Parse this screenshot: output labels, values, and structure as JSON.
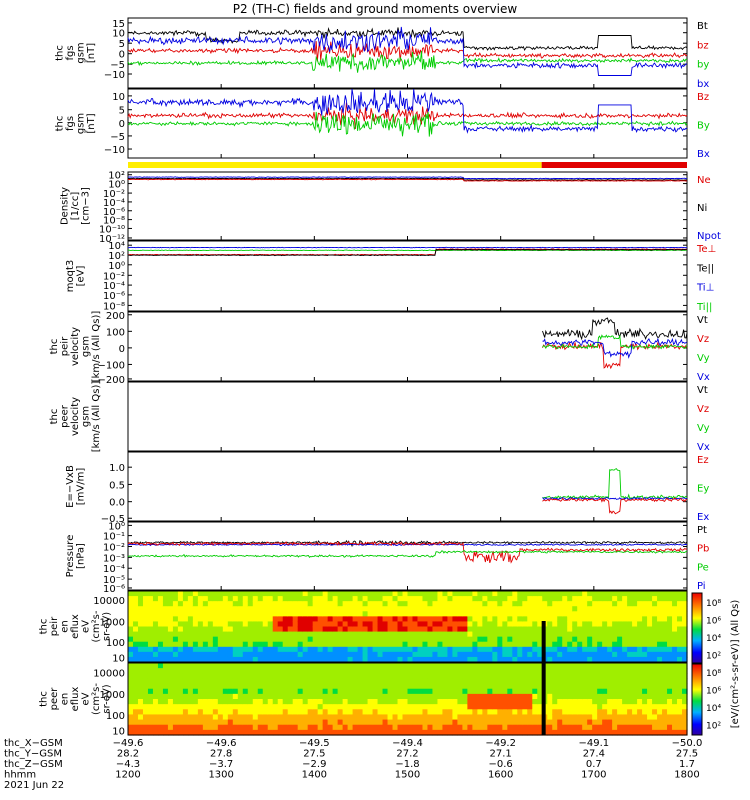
{
  "title": "P2 (TH-C) fields and ground moments overview",
  "colors": {
    "black": "#000000",
    "red": "#e00000",
    "green": "#00cc00",
    "blue": "#0000e0",
    "yellow": "#ffee00",
    "bar_red": "#e00000"
  },
  "panels": [
    {
      "id": "fgs-gsm",
      "ylabel": [
        "thc",
        "fgs",
        "gsm",
        "[nT]"
      ],
      "yticks": [
        "15",
        "10",
        "5",
        "0",
        "−5",
        "−10"
      ],
      "legend": [
        {
          "label": "Bt",
          "color": "#000000"
        },
        {
          "label": "bz",
          "color": "#e00000"
        },
        {
          "label": "by",
          "color": "#00cc00"
        },
        {
          "label": "bx",
          "color": "#0000e0"
        }
      ]
    },
    {
      "id": "fgs-dsl",
      "ylabel": [
        "thc",
        "fgs",
        "gsm",
        "[nT]"
      ],
      "yticks": [
        "10",
        "5",
        "0",
        "−5",
        "−10"
      ],
      "legend": [
        {
          "label": "Bz",
          "color": "#e00000"
        },
        {
          "label": "By",
          "color": "#00cc00"
        },
        {
          "label": "Bx",
          "color": "#0000e0"
        }
      ]
    },
    {
      "id": "density",
      "ylabel": [
        "Density",
        "[1/cc]",
        "[cm−3]"
      ],
      "yticks": [
        "10²",
        "10⁰",
        "10⁻²",
        "10⁻⁴",
        "10⁻⁶",
        "10⁻⁸",
        "10⁻¹⁰",
        "10⁻¹²"
      ],
      "legend": [
        {
          "label": "Ne",
          "color": "#e00000"
        },
        {
          "label": "Ni",
          "color": "#000000"
        },
        {
          "label": "Npot",
          "color": "#0000e0"
        }
      ]
    },
    {
      "id": "temperature",
      "ylabel": [
        "moqt3",
        "[eV]"
      ],
      "yticks": [
        "10⁴",
        "10²",
        "10⁰",
        "10⁻²",
        "10⁻⁴",
        "10⁻⁶",
        "10⁻⁸"
      ],
      "legend": [
        {
          "label": "Te⊥",
          "color": "#e00000"
        },
        {
          "label": "Te||",
          "color": "#000000"
        },
        {
          "label": "Ti⊥",
          "color": "#0000e0"
        },
        {
          "label": "Ti||",
          "color": "#00cc00"
        }
      ]
    },
    {
      "id": "peir-velocity",
      "ylabel": [
        "thc",
        "peir",
        "velocity",
        "gsm",
        "[km/s (All Qs)]"
      ],
      "yticks": [
        "200",
        "100",
        "0",
        "−100",
        "−200"
      ],
      "legend": [
        {
          "label": "Vt",
          "color": "#000000"
        },
        {
          "label": "Vz",
          "color": "#e00000"
        },
        {
          "label": "Vy",
          "color": "#00cc00"
        },
        {
          "label": "Vx",
          "color": "#0000e0"
        }
      ]
    },
    {
      "id": "peer-velocity",
      "ylabel": [
        "thc",
        "peer",
        "velocity",
        "gsm",
        "[km/s (All Qs)]"
      ],
      "yticks": [],
      "legend": [
        {
          "label": "Vt",
          "color": "#000000"
        },
        {
          "label": "Vz",
          "color": "#e00000"
        },
        {
          "label": "Vy",
          "color": "#00cc00"
        },
        {
          "label": "Vx",
          "color": "#0000e0"
        }
      ]
    },
    {
      "id": "efield",
      "ylabel": [
        "E=−VxB",
        "[mV/m]"
      ],
      "yticks": [
        "1.0",
        "0.5",
        "0.0",
        "−0.5"
      ],
      "legend": [
        {
          "label": "Ez",
          "color": "#e00000"
        },
        {
          "label": "Ey",
          "color": "#00cc00"
        },
        {
          "label": "Ex",
          "color": "#0000e0"
        }
      ]
    },
    {
      "id": "pressure",
      "ylabel": [
        "Pressure",
        "[nPa]"
      ],
      "yticks": [
        "10⁰",
        "10⁻¹",
        "10⁻²",
        "10⁻³",
        "10⁻⁴",
        "10⁻⁵",
        "10⁻⁶"
      ],
      "legend": [
        {
          "label": "Pt",
          "color": "#000000"
        },
        {
          "label": "Pb",
          "color": "#e00000"
        },
        {
          "label": "Pe",
          "color": "#00cc00"
        },
        {
          "label": "Pi",
          "color": "#0000e0"
        }
      ]
    },
    {
      "id": "peir-spec",
      "ylabel": [
        "thc",
        "peir",
        "en",
        "eflux",
        "eV",
        "(cm²s-",
        "sr-eV)"
      ],
      "yticks": [
        "10000",
        "1000",
        "100",
        "10"
      ]
    },
    {
      "id": "peer-spec",
      "ylabel": [
        "thc",
        "peer",
        "en",
        "eflux",
        "eV",
        "(cm²s-",
        "sr-eV)"
      ],
      "yticks": [
        "10000",
        "1000",
        "100",
        "10"
      ]
    }
  ],
  "colorbar": {
    "label": "[eV/(cm²-s-sr-eV)] (All Qs)",
    "ticks": [
      "10⁸",
      "10⁶",
      "10⁴",
      "10²",
      "10⁸",
      "10⁶",
      "10⁴",
      "10²"
    ]
  },
  "x_axis": {
    "row_labels": [
      "thc_X−GSM",
      "thc_Y−GSM",
      "thc_Z−GSM",
      "hhmm",
      "2021 Jun 22"
    ],
    "ticks": [
      {
        "x": "−49.6",
        "y": "28.2",
        "z": "−4.3",
        "t": "1200"
      },
      {
        "x": "−49.6",
        "y": "27.8",
        "z": "−3.7",
        "t": "1300"
      },
      {
        "x": "−49.5",
        "y": "27.5",
        "z": "−2.9",
        "t": "1400"
      },
      {
        "x": "−49.4",
        "y": "27.2",
        "z": "−1.8",
        "t": "1500"
      },
      {
        "x": "−49.2",
        "y": "27.1",
        "z": "−0.6",
        "t": "1600"
      },
      {
        "x": "−49.1",
        "y": "27.4",
        "z": "0.7",
        "t": "1700"
      },
      {
        "x": "−50.0",
        "y": "27.5",
        "z": "1.7",
        "t": "1800"
      }
    ]
  },
  "chart_data": {
    "type": "line",
    "title": "P2 (TH-C) fields and ground moments overview",
    "x": {
      "label": "hhmm",
      "range": [
        "1200",
        "1800"
      ],
      "ticks": [
        "1200",
        "1300",
        "1400",
        "1500",
        "1600",
        "1700",
        "1800"
      ]
    },
    "panels": [
      {
        "name": "fgs gsm",
        "ylim": [
          -15,
          15
        ],
        "series": [
          "Bt",
          "bz",
          "by",
          "bx"
        ],
        "note": "Bt ~8-12 nT 1200-1600, turbulent 1400-1520, drops to ~3-6 nT after 1600"
      },
      {
        "name": "fgs gsm",
        "ylim": [
          -15,
          12
        ],
        "series": [
          "Bz",
          "By",
          "Bx"
        ]
      },
      {
        "name": "Density",
        "scale": "log",
        "ylim": [
          "1e-12",
          "1e2"
        ],
        "series": [
          "Ne",
          "Ni",
          "Npot"
        ],
        "approx_value": "~1 cm-3"
      },
      {
        "name": "moqt3 temperature",
        "scale": "log",
        "ylim": [
          "1e-8",
          "1e4"
        ],
        "series": [
          "Te⊥",
          "Te||",
          "Ti⊥",
          "Ti||"
        ],
        "approx_value": "~10-1000 eV"
      },
      {
        "name": "peir velocity",
        "ylim": [
          -200,
          200
        ],
        "series": [
          "Vt",
          "Vz",
          "Vy",
          "Vx"
        ],
        "data_from": "1640"
      },
      {
        "name": "peer velocity",
        "series": [
          "Vt",
          "Vz",
          "Vy",
          "Vx"
        ],
        "data_from": "none"
      },
      {
        "name": "E=−VxB",
        "ylim": [
          -0.7,
          1.4
        ],
        "series": [
          "Ez",
          "Ey",
          "Ex"
        ],
        "data_from": "1640"
      },
      {
        "name": "Pressure",
        "scale": "log",
        "ylim": [
          "1e-6",
          "1e0"
        ],
        "series": [
          "Pt",
          "Pb",
          "Pe",
          "Pi"
        ]
      }
    ],
    "spectrograms": [
      {
        "name": "peir en eflux",
        "ylim": [
          10,
          10000
        ],
        "scale": "log"
      },
      {
        "name": "peer en eflux",
        "ylim": [
          10,
          10000
        ],
        "scale": "log"
      }
    ]
  }
}
